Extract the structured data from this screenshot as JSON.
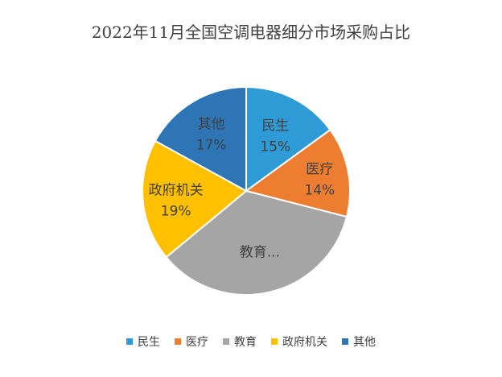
{
  "chart_data": {
    "type": "pie",
    "title": "2022年11月全国空调电器细分市场采购占比",
    "categories": [
      "民生",
      "医疗",
      "教育",
      "政府机关",
      "其他"
    ],
    "values": [
      15,
      14,
      35,
      19,
      17
    ],
    "slice_labels": [
      "民生",
      "医疗",
      "教育...",
      "政府机关",
      "其他"
    ],
    "percent_labels": [
      "15%",
      "14%",
      "",
      "19%",
      "17%"
    ],
    "colors": [
      "#2E9BD6",
      "#ED7D31",
      "#A5A5A5",
      "#FFC000",
      "#2E75B6"
    ],
    "legend_position": "bottom"
  }
}
